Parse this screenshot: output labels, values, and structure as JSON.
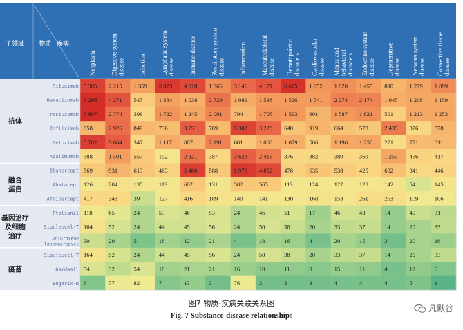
{
  "chart_data": {
    "type": "heatmap",
    "header": {
      "group_label": "子领域",
      "substance_label": "物质",
      "disease_label": "疾病"
    },
    "columns": [
      "Neoplasm",
      "Digestive system disease",
      "Infection",
      "Lymphatic system disease",
      "Immune disease",
      "Respiratory system disease",
      "Inflammation",
      "Musculoskeletal disease",
      "Hematopoietic disorders",
      "Cardiovascular disease",
      "Mental and behavioral disorders",
      "Endocrine system disease",
      "Degenerative disease",
      "Nervous system disease",
      "Connective tissue disease"
    ],
    "groups": [
      {
        "label": "抗体",
        "rows": [
          {
            "name": "Rituximab",
            "display": [
              "5 385",
              "2 215",
              "1 359",
              "5 973",
              "4 818",
              "1 866",
              "3 146",
              "4 171",
              "6 675",
              "1 652",
              "1 820",
              "1 455",
              "890",
              "1 279",
              "1 899"
            ]
          },
          {
            "name": "Bevacizumab",
            "display": [
              "7 296",
              "4 271",
              "547",
              "1 384",
              "1 038",
              "2 729",
              "1 089",
              "1 538",
              "1 526",
              "1 541",
              "2 274",
              "2 174",
              "1 045",
              "1 208",
              "1 159"
            ]
          },
          {
            "name": "Trastuzumab",
            "display": [
              "7 867",
              "2 774",
              "399",
              "1 722",
              "1 245",
              "2 091",
              "794",
              "1 705",
              "1 593",
              "901",
              "1 587",
              "1 821",
              "501",
              "1 213",
              "1 253"
            ]
          },
          {
            "name": "Infliximab",
            "display": [
              "858",
              "2 926",
              "849",
              "736",
              "3 751",
              "789",
              "5 302",
              "3 228",
              "640",
              "919",
              "664",
              "578",
              "2 435",
              "376",
              "878"
            ]
          },
          {
            "name": "Cetuximab",
            "display": [
              "5 702",
              "3 664",
              "347",
              "1 117",
              "887",
              "2 191",
              "601",
              "1 066",
              "1 079",
              "506",
              "1 196",
              "1 258",
              "271",
              "771",
              "811"
            ]
          },
          {
            "name": "Adalimumab",
            "display": [
              "388",
              "1 501",
              "557",
              "152",
              "2 821",
              "387",
              "3 623",
              "2 416",
              "376",
              "382",
              "389",
              "369",
              "1 253",
              "456",
              "417"
            ]
          }
        ]
      },
      {
        "label": "融合\n蛋白",
        "rows": [
          {
            "name": "Etanercept",
            "display": [
              "569",
              "931",
              "613",
              "463",
              "5 480",
              "588",
              "5 976",
              "4 852",
              "478",
              "635",
              "538",
              "425",
              "692",
              "341",
              "446"
            ]
          },
          {
            "name": "Abatacept",
            "display": [
              "126",
              "204",
              "135",
              "113",
              "602",
              "131",
              "582",
              "565",
              "113",
              "124",
              "127",
              "128",
              "142",
              "54",
              "145"
            ]
          },
          {
            "name": "Aflibercept",
            "display": [
              "417",
              "343",
              "39",
              "127",
              "416",
              "189",
              "140",
              "141",
              "130",
              "168",
              "153",
              "261",
              "253",
              "109",
              "106"
            ]
          }
        ]
      },
      {
        "label": "基因治疗\n及细胞\n治疗",
        "rows": [
          {
            "name": "Ptoliani1",
            "display": [
              "118",
              "65",
              "24",
              "53",
              "46",
              "53",
              "24",
              "46",
              "51",
              "17",
              "46",
              "43",
              "14",
              "40",
              "31"
            ]
          },
          {
            "name": "Sipuleucel-T",
            "display": [
              "164",
              "52",
              "24",
              "44",
              "45",
              "56",
              "24",
              "50",
              "38",
              "20",
              "33",
              "37",
              "14",
              "20",
              "33"
            ]
          },
          {
            "name": "Voluroxene\nlaherparepvec",
            "display": [
              "39",
              "20",
              "5",
              "18",
              "12",
              "21",
              "4",
              "18",
              "16",
              "4",
              "20",
              "15",
              "3",
              "20",
              "16"
            ]
          }
        ]
      },
      {
        "label": "疫苗",
        "rows": [
          {
            "name": "Sipuleucel-T",
            "display": [
              "164",
              "52",
              "24",
              "44",
              "45",
              "56",
              "24",
              "50",
              "38",
              "20",
              "33",
              "37",
              "14",
              "20",
              "33"
            ]
          },
          {
            "name": "Gardasil",
            "display": [
              "54",
              "32",
              "54",
              "18",
              "21",
              "21",
              "16",
              "10",
              "11",
              "8",
              "15",
              "11",
              "4",
              "12",
              "6"
            ]
          },
          {
            "name": "Engerix-B",
            "display": [
              "6",
              "77",
              "82",
              "7",
              "13",
              "3",
              "76",
              "3",
              "3",
              "3",
              "4",
              "4",
              "4",
              "5",
              "1"
            ]
          }
        ]
      }
    ]
  },
  "captions": {
    "figure_cn": "图7    物质-疾病关联关系图",
    "figure_en": "Fig. 7    Substance-disease relationships",
    "watermark": "凡默谷"
  }
}
